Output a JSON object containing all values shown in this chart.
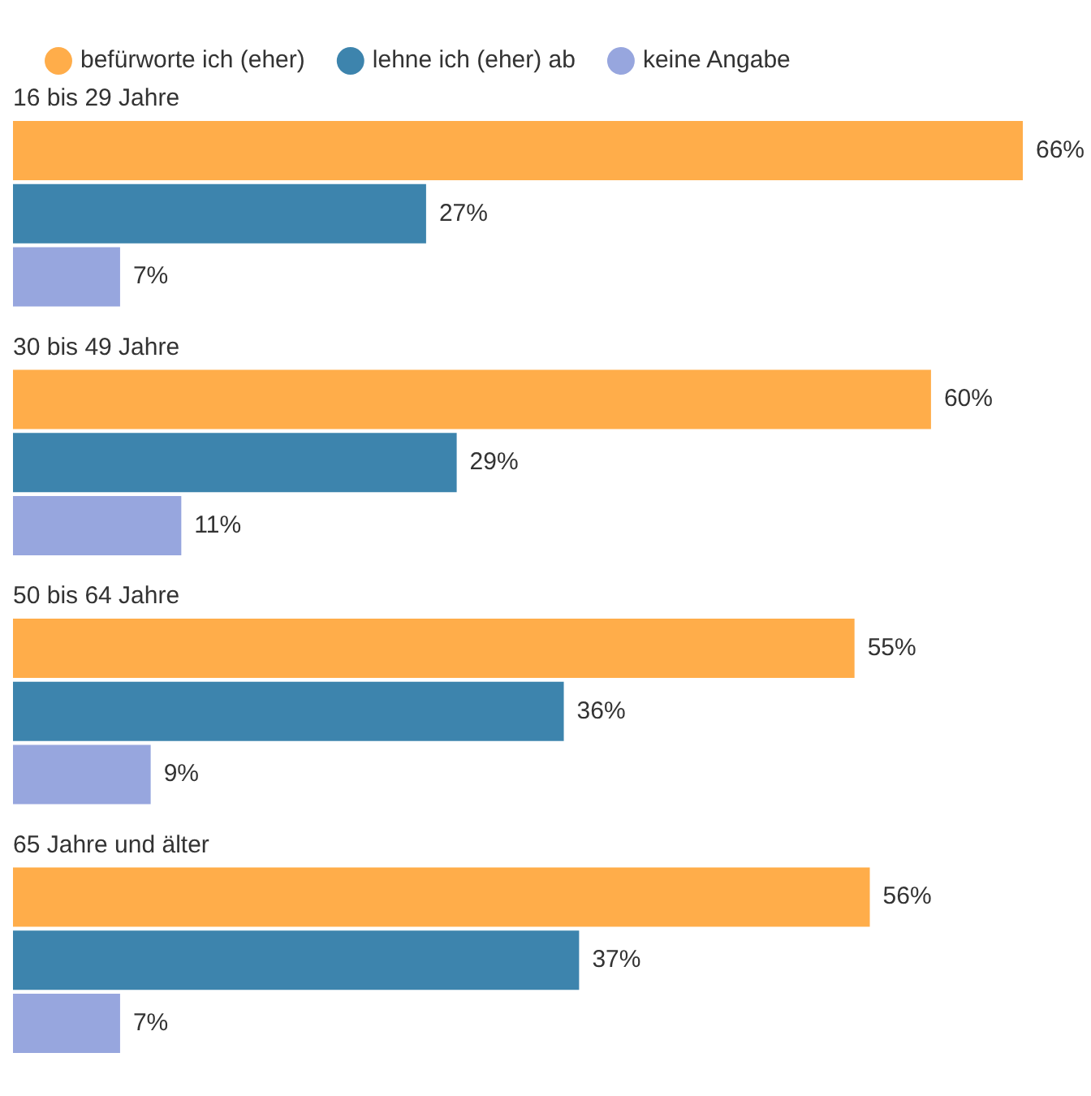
{
  "chart_data": {
    "type": "bar",
    "orientation": "horizontal",
    "legend": "top left",
    "categories": [
      "16 bis 29 Jahre",
      "30 bis 49 Jahre",
      "50 bis 64 Jahre",
      "65 Jahre und älter"
    ],
    "series": [
      {
        "name": "befürworte ich (eher)",
        "color": "#ffad4a",
        "values": [
          66,
          60,
          55,
          56
        ],
        "value_labels": [
          "66%",
          "60%",
          "55%",
          "56%"
        ]
      },
      {
        "name": "lehne ich (eher) ab",
        "color": "#3d84ad",
        "values": [
          27,
          29,
          36,
          37
        ],
        "value_labels": [
          "27%",
          "29%",
          "36%",
          "37%"
        ]
      },
      {
        "name": "keine Angabe",
        "color": "#97a6de",
        "values": [
          7,
          11,
          9,
          7
        ],
        "value_labels": [
          "7%",
          "11%",
          "9%",
          "7%"
        ]
      }
    ]
  }
}
